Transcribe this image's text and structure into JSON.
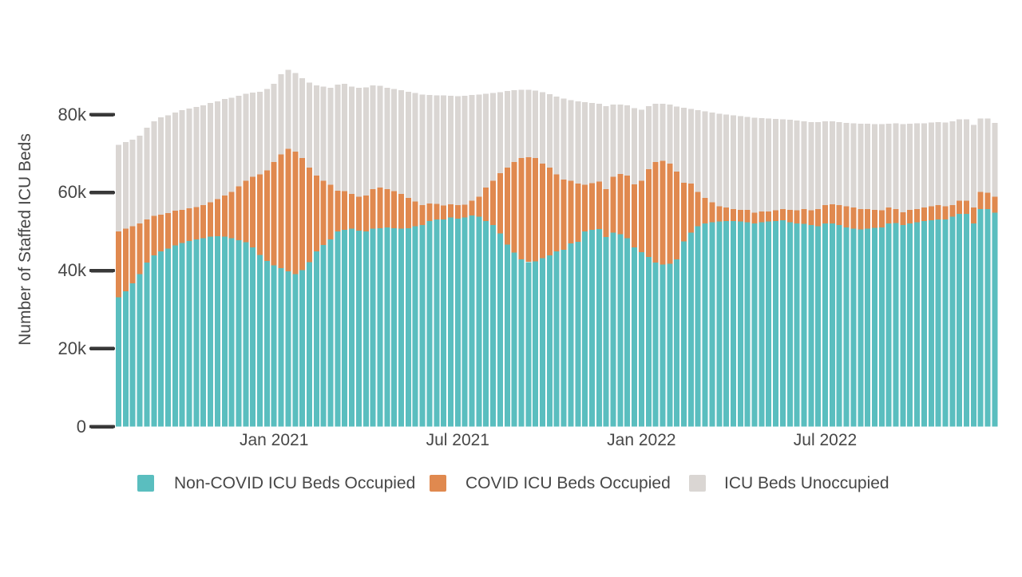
{
  "colors": {
    "non_covid": "#5ABEBF",
    "covid": "#E0894F",
    "unoccupied": "#DAD6D3",
    "text": "#474747",
    "tick": "#383838",
    "background": "#ffffff"
  },
  "chart_data": {
    "type": "bar",
    "stacked": true,
    "title": "",
    "xlabel": "",
    "ylabel": "Number of Staffed ICU Beds",
    "unit": "thousands of beds",
    "ylim": [
      0,
      92
    ],
    "grid": false,
    "legend_position": "bottom",
    "y_ticks": [
      {
        "value": 0,
        "label": "0"
      },
      {
        "value": 20,
        "label": "20k"
      },
      {
        "value": 40,
        "label": "40k"
      },
      {
        "value": 60,
        "label": "60k"
      },
      {
        "value": 80,
        "label": "80k"
      }
    ],
    "x_tick_labels": [
      {
        "label": "Jan 2021",
        "week": 22
      },
      {
        "label": "Jul 2021",
        "week": 48
      },
      {
        "label": "Jan 2022",
        "week": 74
      },
      {
        "label": "Jul 2022",
        "week": 100
      }
    ],
    "dates": [
      "2020-07-31",
      "2020-08-07",
      "2020-08-14",
      "2020-08-21",
      "2020-08-28",
      "2020-09-04",
      "2020-09-11",
      "2020-09-18",
      "2020-09-25",
      "2020-10-02",
      "2020-10-09",
      "2020-10-16",
      "2020-10-23",
      "2020-10-30",
      "2020-11-06",
      "2020-11-13",
      "2020-11-20",
      "2020-11-27",
      "2020-12-04",
      "2020-12-11",
      "2020-12-18",
      "2020-12-25",
      "2021-01-01",
      "2021-01-08",
      "2021-01-15",
      "2021-01-22",
      "2021-01-29",
      "2021-02-05",
      "2021-02-12",
      "2021-02-19",
      "2021-02-26",
      "2021-03-05",
      "2021-03-12",
      "2021-03-19",
      "2021-03-26",
      "2021-04-02",
      "2021-04-09",
      "2021-04-16",
      "2021-04-23",
      "2021-04-30",
      "2021-05-07",
      "2021-05-14",
      "2021-05-21",
      "2021-05-28",
      "2021-06-04",
      "2021-06-11",
      "2021-06-18",
      "2021-06-25",
      "2021-07-02",
      "2021-07-09",
      "2021-07-16",
      "2021-07-23",
      "2021-07-30",
      "2021-08-06",
      "2021-08-13",
      "2021-08-20",
      "2021-08-27",
      "2021-09-03",
      "2021-09-10",
      "2021-09-17",
      "2021-09-24",
      "2021-10-01",
      "2021-10-08",
      "2021-10-15",
      "2021-10-22",
      "2021-10-29",
      "2021-11-05",
      "2021-11-12",
      "2021-11-19",
      "2021-11-26",
      "2021-12-03",
      "2021-12-10",
      "2021-12-17",
      "2021-12-24",
      "2021-12-31",
      "2022-01-07",
      "2022-01-14",
      "2022-01-21",
      "2022-01-28",
      "2022-02-04",
      "2022-02-11",
      "2022-02-18",
      "2022-02-25",
      "2022-03-04",
      "2022-03-11",
      "2022-03-18",
      "2022-03-25",
      "2022-04-01",
      "2022-04-08",
      "2022-04-15",
      "2022-04-22",
      "2022-04-29",
      "2022-05-06",
      "2022-05-13",
      "2022-05-20",
      "2022-05-27",
      "2022-06-03",
      "2022-06-10",
      "2022-06-17",
      "2022-06-24",
      "2022-07-01",
      "2022-07-08",
      "2022-07-15",
      "2022-07-22",
      "2022-07-29",
      "2022-08-05",
      "2022-08-12",
      "2022-08-19",
      "2022-08-26",
      "2022-09-02",
      "2022-09-09",
      "2022-09-16",
      "2022-09-23",
      "2022-09-30",
      "2022-10-07",
      "2022-10-14",
      "2022-10-21",
      "2022-10-28",
      "2022-11-04",
      "2022-11-11",
      "2022-11-18",
      "2022-11-25",
      "2022-12-02",
      "2022-12-09",
      "2022-12-16"
    ],
    "series": [
      {
        "key": "non-covid-icu-beds-occupied",
        "name": "Non-COVID ICU Beds Occupied",
        "color": "#5ABEBF",
        "values": [
          33.1,
          34.7,
          36.7,
          39.1,
          42.0,
          43.9,
          44.9,
          45.6,
          46.4,
          47.1,
          47.6,
          48.0,
          48.3,
          48.7,
          48.8,
          48.7,
          48.3,
          47.8,
          47.3,
          45.9,
          44.0,
          42.5,
          41.3,
          40.6,
          39.8,
          39.1,
          40.1,
          42.2,
          44.9,
          46.6,
          48.0,
          50.0,
          50.4,
          50.7,
          50.2,
          50.0,
          50.7,
          50.8,
          51.0,
          50.8,
          50.7,
          50.8,
          51.4,
          51.7,
          52.7,
          53.1,
          53.1,
          53.6,
          53.3,
          53.6,
          54.1,
          53.8,
          52.7,
          51.7,
          49.5,
          46.6,
          44.6,
          42.9,
          42.2,
          42.4,
          43.2,
          43.9,
          44.9,
          45.3,
          47.0,
          47.4,
          50.0,
          50.4,
          50.6,
          48.6,
          49.7,
          49.3,
          48.3,
          45.9,
          44.7,
          43.5,
          42.0,
          41.5,
          41.7,
          42.9,
          47.5,
          49.7,
          51.4,
          52.1,
          52.4,
          52.6,
          52.7,
          52.7,
          52.6,
          52.4,
          52.1,
          52.4,
          52.6,
          52.7,
          52.9,
          52.4,
          52.1,
          52.0,
          51.7,
          51.4,
          52.1,
          52.1,
          51.7,
          51.0,
          50.7,
          50.5,
          50.7,
          50.9,
          51.0,
          52.1,
          52.2,
          51.7,
          52.1,
          52.4,
          52.7,
          52.9,
          53.1,
          53.1,
          53.8,
          54.5,
          54.5,
          52.1,
          55.8,
          55.8,
          54.8
        ]
      },
      {
        "key": "covid-icu-beds-occupied",
        "name": "COVID ICU Beds Occupied",
        "color": "#E0894F",
        "values": [
          16.9,
          16.0,
          14.7,
          13.0,
          11.1,
          10.1,
          9.4,
          9.1,
          8.9,
          8.5,
          8.4,
          8.3,
          8.5,
          8.8,
          9.5,
          10.5,
          11.9,
          13.8,
          15.7,
          18.1,
          20.7,
          23.2,
          26.5,
          29.2,
          31.4,
          31.4,
          28.7,
          24.2,
          19.4,
          16.4,
          14.0,
          10.5,
          10.0,
          8.9,
          8.7,
          9.2,
          10.2,
          10.5,
          9.9,
          9.6,
          8.9,
          7.8,
          6.3,
          5.1,
          4.5,
          4.0,
          3.6,
          3.4,
          3.5,
          3.3,
          3.8,
          5.1,
          8.6,
          11.3,
          15.5,
          19.8,
          23.2,
          25.9,
          26.9,
          26.4,
          24.2,
          22.5,
          19.8,
          18.0,
          16.0,
          14.9,
          12.0,
          12.0,
          12.2,
          12.3,
          14.3,
          15.5,
          16.0,
          16.2,
          18.3,
          22.5,
          25.8,
          26.6,
          25.7,
          22.5,
          15.0,
          12.6,
          8.8,
          6.5,
          5.1,
          3.9,
          3.5,
          3.1,
          3.0,
          3.1,
          2.7,
          2.7,
          2.5,
          2.8,
          2.9,
          3.2,
          3.3,
          3.8,
          3.8,
          4.4,
          4.7,
          4.9,
          5.1,
          5.5,
          5.5,
          5.3,
          5.1,
          4.7,
          4.5,
          4.1,
          3.6,
          3.2,
          3.4,
          3.4,
          3.5,
          3.6,
          3.7,
          3.4,
          3.0,
          3.4,
          3.4,
          4.1,
          4.4,
          4.1,
          4.1
        ]
      },
      {
        "key": "icu-beds-unoccupied",
        "name": "ICU Beds Unoccupied",
        "color": "#DAD6D3",
        "values": [
          22.2,
          22.2,
          22.2,
          22.5,
          23.5,
          24.3,
          25.0,
          25.1,
          25.2,
          25.5,
          25.5,
          25.6,
          25.6,
          25.5,
          25.1,
          24.8,
          24.1,
          23.2,
          22.3,
          21.6,
          21.1,
          20.8,
          20.1,
          20.5,
          20.3,
          20.1,
          20.5,
          21.8,
          23.2,
          24.2,
          24.9,
          27.2,
          27.5,
          27.6,
          28.0,
          27.8,
          26.6,
          26.1,
          26.0,
          26.1,
          26.6,
          27.2,
          27.8,
          28.3,
          27.8,
          27.8,
          28.2,
          27.8,
          27.9,
          27.9,
          27.1,
          26.2,
          24.0,
          22.5,
          20.7,
          19.6,
          18.4,
          17.5,
          17.2,
          17.3,
          18.3,
          18.8,
          19.9,
          20.8,
          20.7,
          21.1,
          21.2,
          20.6,
          20.0,
          21.3,
          18.6,
          17.8,
          18.1,
          19.5,
          18.2,
          16.2,
          15.0,
          14.7,
          15.2,
          16.6,
          19.2,
          19.1,
          20.9,
          22.2,
          23.0,
          23.7,
          23.8,
          24.0,
          24.0,
          23.9,
          24.4,
          24.0,
          23.9,
          23.4,
          23.0,
          23.1,
          23.1,
          22.5,
          22.6,
          22.3,
          21.5,
          21.3,
          21.3,
          21.4,
          21.6,
          21.8,
          21.8,
          21.9,
          22.0,
          21.4,
          21.9,
          22.6,
          22.1,
          21.9,
          21.6,
          21.5,
          21.3,
          21.5,
          21.5,
          20.9,
          20.9,
          21.1,
          18.8,
          19.1,
          19.0
        ]
      }
    ]
  }
}
